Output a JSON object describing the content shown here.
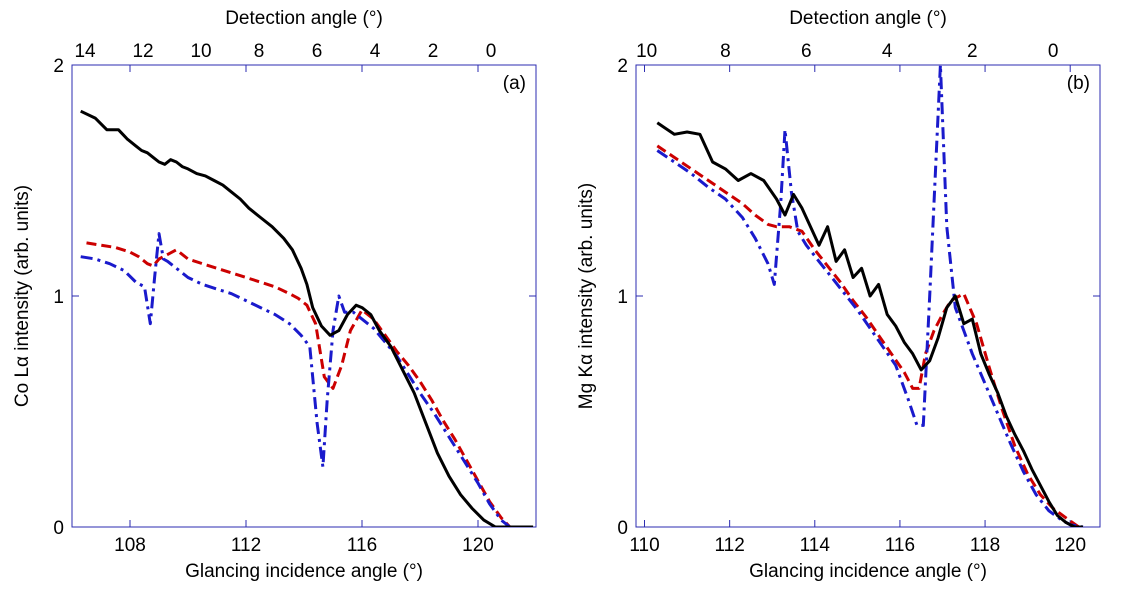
{
  "figure": {
    "panels": [
      {
        "label": "(a)"
      },
      {
        "label": "(b)"
      }
    ]
  },
  "chart_data": [
    {
      "type": "line",
      "panel_label": "(a)",
      "title": "",
      "xlabel": "Glancing incidence angle (°)",
      "ylabel": "Co Lα intensity (arb. units)",
      "top_xlabel": "Detection angle (°)",
      "xlim": [
        106,
        122
      ],
      "ylim": [
        0,
        2
      ],
      "xticks": [
        108,
        112,
        116,
        120
      ],
      "yticks": [
        0,
        1,
        2
      ],
      "top_ticks": [
        {
          "label": "14",
          "x": 106.45
        },
        {
          "label": "12",
          "x": 108.45
        },
        {
          "label": "10",
          "x": 110.45
        },
        {
          "label": "8",
          "x": 112.45
        },
        {
          "label": "6",
          "x": 114.45
        },
        {
          "label": "4",
          "x": 116.45
        },
        {
          "label": "2",
          "x": 118.45
        },
        {
          "label": "0",
          "x": 120.45
        }
      ],
      "grid": false,
      "series": [
        {
          "color": "#000000",
          "style": "solid",
          "x": [
            106.3,
            106.8,
            107.2,
            107.6,
            107.9,
            108.2,
            108.4,
            108.6,
            108.8,
            109.0,
            109.2,
            109.4,
            109.6,
            109.8,
            110.0,
            110.3,
            110.6,
            110.9,
            111.2,
            111.5,
            111.8,
            112.1,
            112.5,
            112.9,
            113.3,
            113.6,
            113.9,
            114.1,
            114.3,
            114.6,
            114.9,
            115.2,
            115.5,
            115.8,
            116.0,
            116.3,
            116.6,
            117.0,
            117.4,
            117.8,
            118.2,
            118.6,
            119.0,
            119.4,
            119.8,
            120.2,
            120.6,
            121.0,
            121.5,
            121.9
          ],
          "y": [
            1.8,
            1.77,
            1.72,
            1.72,
            1.68,
            1.65,
            1.63,
            1.62,
            1.6,
            1.58,
            1.57,
            1.59,
            1.58,
            1.56,
            1.55,
            1.53,
            1.52,
            1.5,
            1.48,
            1.45,
            1.42,
            1.38,
            1.34,
            1.3,
            1.25,
            1.2,
            1.12,
            1.05,
            0.95,
            0.87,
            0.83,
            0.85,
            0.92,
            0.96,
            0.95,
            0.92,
            0.85,
            0.78,
            0.68,
            0.58,
            0.45,
            0.32,
            0.22,
            0.14,
            0.08,
            0.03,
            0.0,
            0.0,
            0.0,
            0.0
          ]
        },
        {
          "color": "#cc0000",
          "style": "dashed",
          "x": [
            106.5,
            107.0,
            107.5,
            108.0,
            108.3,
            108.6,
            108.8,
            109.0,
            109.3,
            109.6,
            110.0,
            110.5,
            111.0,
            111.5,
            112.0,
            112.5,
            113.0,
            113.5,
            113.8,
            114.1,
            114.4,
            114.7,
            115.0,
            115.3,
            115.6,
            116.0,
            116.4,
            116.8,
            117.2,
            117.6,
            118.0,
            118.4,
            118.8,
            119.2,
            119.6,
            120.0,
            120.4,
            120.8,
            121.1
          ],
          "y": [
            1.23,
            1.22,
            1.21,
            1.19,
            1.17,
            1.14,
            1.13,
            1.16,
            1.18,
            1.2,
            1.16,
            1.14,
            1.12,
            1.1,
            1.08,
            1.06,
            1.04,
            1.01,
            0.99,
            0.96,
            0.88,
            0.65,
            0.6,
            0.7,
            0.85,
            0.94,
            0.9,
            0.83,
            0.76,
            0.7,
            0.63,
            0.55,
            0.46,
            0.38,
            0.29,
            0.2,
            0.11,
            0.04,
            0.0
          ]
        },
        {
          "color": "#1a1acc",
          "style": "dashdot",
          "x": [
            106.3,
            106.8,
            107.3,
            107.8,
            108.2,
            108.5,
            108.7,
            108.85,
            109.0,
            109.15,
            109.3,
            109.6,
            110.0,
            110.5,
            111.0,
            111.5,
            112.0,
            112.5,
            113.0,
            113.5,
            113.9,
            114.2,
            114.45,
            114.65,
            114.8,
            115.0,
            115.2,
            115.4,
            115.7,
            116.0,
            116.4,
            116.8,
            117.2,
            117.6,
            118.0,
            118.5,
            119.0,
            119.5,
            120.0,
            120.4,
            120.8,
            121.1
          ],
          "y": [
            1.17,
            1.16,
            1.14,
            1.11,
            1.06,
            1.04,
            0.88,
            1.08,
            1.27,
            1.16,
            1.15,
            1.12,
            1.08,
            1.05,
            1.03,
            1.01,
            0.98,
            0.95,
            0.92,
            0.88,
            0.83,
            0.78,
            0.45,
            0.26,
            0.55,
            0.85,
            1.0,
            0.93,
            0.93,
            0.9,
            0.86,
            0.8,
            0.74,
            0.66,
            0.58,
            0.49,
            0.39,
            0.29,
            0.19,
            0.1,
            0.03,
            0.0
          ]
        }
      ]
    },
    {
      "type": "line",
      "panel_label": "(b)",
      "title": "",
      "xlabel": "Glancing incidence angle (°)",
      "ylabel": "Mg Kα intensity (arb. units)",
      "top_xlabel": "Detection angle (°)",
      "xlim": [
        109.8,
        120.7
      ],
      "ylim": [
        0,
        2
      ],
      "xticks": [
        110,
        112,
        114,
        116,
        118,
        120
      ],
      "yticks": [
        0,
        1,
        2
      ],
      "top_ticks": [
        {
          "label": "10",
          "x": 110.05
        },
        {
          "label": "8",
          "x": 111.9
        },
        {
          "label": "6",
          "x": 113.8
        },
        {
          "label": "4",
          "x": 115.7
        },
        {
          "label": "2",
          "x": 117.7
        },
        {
          "label": "0",
          "x": 119.6
        }
      ],
      "grid": false,
      "series": [
        {
          "color": "#000000",
          "style": "solid",
          "x": [
            110.3,
            110.7,
            111.0,
            111.3,
            111.6,
            111.9,
            112.2,
            112.5,
            112.8,
            113.1,
            113.3,
            113.5,
            113.7,
            113.9,
            114.1,
            114.3,
            114.5,
            114.7,
            114.9,
            115.1,
            115.3,
            115.5,
            115.7,
            115.9,
            116.1,
            116.3,
            116.5,
            116.7,
            116.9,
            117.1,
            117.3,
            117.5,
            117.7,
            117.9,
            118.1,
            118.3,
            118.5,
            118.7,
            118.9,
            119.1,
            119.3,
            119.5,
            119.7,
            119.9,
            120.1,
            120.3
          ],
          "y": [
            1.75,
            1.7,
            1.71,
            1.7,
            1.58,
            1.55,
            1.5,
            1.53,
            1.5,
            1.42,
            1.35,
            1.44,
            1.38,
            1.3,
            1.22,
            1.3,
            1.15,
            1.2,
            1.08,
            1.12,
            1.0,
            1.05,
            0.92,
            0.87,
            0.8,
            0.75,
            0.68,
            0.72,
            0.82,
            0.95,
            1.0,
            0.88,
            0.9,
            0.75,
            0.66,
            0.58,
            0.48,
            0.4,
            0.33,
            0.25,
            0.18,
            0.11,
            0.05,
            0.02,
            0.0,
            0.0
          ]
        },
        {
          "color": "#cc0000",
          "style": "dashed",
          "x": [
            110.3,
            110.7,
            111.1,
            111.5,
            111.9,
            112.3,
            112.6,
            112.9,
            113.1,
            113.4,
            113.7,
            114.0,
            114.3,
            114.6,
            114.9,
            115.2,
            115.5,
            115.8,
            116.1,
            116.3,
            116.45,
            116.6,
            116.8,
            117.0,
            117.2,
            117.5,
            117.8,
            118.1,
            118.4,
            118.7,
            119.0,
            119.3,
            119.6,
            119.9,
            120.2
          ],
          "y": [
            1.65,
            1.6,
            1.55,
            1.5,
            1.45,
            1.4,
            1.35,
            1.31,
            1.3,
            1.3,
            1.28,
            1.2,
            1.13,
            1.06,
            0.98,
            0.91,
            0.83,
            0.75,
            0.67,
            0.6,
            0.6,
            0.75,
            0.85,
            0.92,
            0.98,
            1.01,
            0.88,
            0.69,
            0.51,
            0.35,
            0.23,
            0.14,
            0.08,
            0.04,
            0.0
          ]
        },
        {
          "color": "#1a1acc",
          "style": "dashdot",
          "x": [
            110.3,
            110.7,
            111.1,
            111.5,
            111.9,
            112.3,
            112.6,
            112.9,
            113.05,
            113.2,
            113.3,
            113.45,
            113.6,
            113.8,
            114.1,
            114.4,
            114.7,
            115.0,
            115.3,
            115.6,
            115.9,
            116.2,
            116.4,
            116.55,
            116.7,
            116.85,
            116.95,
            117.1,
            117.3,
            117.5,
            117.7,
            118.0,
            118.3,
            118.6,
            118.9,
            119.2,
            119.5,
            119.8,
            120.0,
            120.3
          ],
          "y": [
            1.63,
            1.58,
            1.53,
            1.47,
            1.42,
            1.34,
            1.25,
            1.14,
            1.05,
            1.4,
            1.72,
            1.45,
            1.28,
            1.22,
            1.15,
            1.08,
            1.01,
            0.94,
            0.86,
            0.78,
            0.7,
            0.55,
            0.44,
            0.44,
            1.0,
            1.6,
            2.0,
            1.3,
            0.95,
            0.85,
            0.75,
            0.62,
            0.49,
            0.36,
            0.24,
            0.14,
            0.07,
            0.03,
            0.01,
            0.0
          ]
        }
      ]
    }
  ]
}
